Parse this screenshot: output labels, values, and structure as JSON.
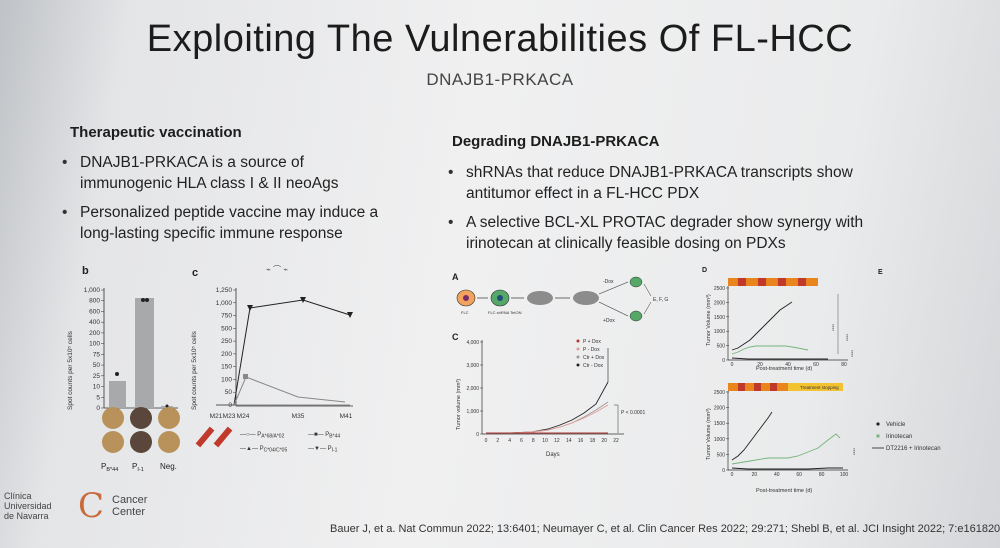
{
  "slide": {
    "title": "Exploiting The Vulnerabilities Of FL-HCC",
    "subtitle": "DNAJB1-PRKACA"
  },
  "left": {
    "heading": "Therapeutic vaccination",
    "bullets": [
      {
        "lines": [
          "DNAJB1-PRKACA is a source of",
          "immunogenic HLA class I & II neoAgs"
        ]
      },
      {
        "lines": [
          "Personalized peptide vaccine may induce a",
          "long-lasting specific immune response"
        ]
      }
    ]
  },
  "right": {
    "heading": "Degrading DNAJB1-PRKACA",
    "bullets": [
      {
        "lines": [
          "shRNAs that reduce DNAJB1-PRKACA transcripts show",
          "antitumor effect in a FL-HCC PDX"
        ]
      },
      {
        "lines": [
          "A selective BCL-XL PROTAC degrader show synergy with",
          "irinotecan at clinically feasible dosing on PDXs"
        ]
      }
    ]
  },
  "figures": {
    "b": {
      "label": "b",
      "ylabel": "Spot counts per 5x10⁵ cells",
      "yticks": [
        "0",
        "5",
        "10",
        "25",
        "50",
        "75",
        "100",
        "200",
        "400",
        "600",
        "800",
        "1,000"
      ],
      "bars": [
        {
          "name": "PB*44",
          "value": 55
        },
        {
          "name": "PI-1",
          "value": 850
        },
        {
          "name": "Neg.",
          "value": 3
        }
      ],
      "xlabels": [
        "P",
        "P",
        "Neg."
      ],
      "xsub": [
        "B*44",
        "I-1",
        ""
      ],
      "colors": {
        "bar": "#a8a9ab",
        "well_light": "#b8925a",
        "well_dark": "#5a463a"
      }
    },
    "c": {
      "label": "c",
      "ylabel": "Spot counts per 5x10⁵ cells",
      "yticks": [
        "0",
        "50",
        "100",
        "150",
        "200",
        "250",
        "500",
        "750",
        "1,000",
        "1,250"
      ],
      "xticks": [
        "M21",
        "M23",
        "M24",
        "M35",
        "M41"
      ],
      "series": [
        {
          "name": "PA*68/A*02",
          "values": [
            0,
            0,
            0,
            0,
            0
          ]
        },
        {
          "name": "PC*04/C*05",
          "values": [
            0,
            0,
            0,
            0,
            0
          ]
        },
        {
          "name": "PB*44",
          "values": [
            0,
            0,
            65,
            25,
            5
          ]
        },
        {
          "name": "PI-1",
          "values": [
            0,
            0,
            850,
            1010,
            760
          ]
        }
      ],
      "legend": [
        "—○— P",
        "A*68/A*02",
        "—▲— P",
        "C*04/C*05",
        "—■— P",
        "B*44",
        "—▼— P",
        "I-1"
      ],
      "colors": {
        "syringe": "#c0392b"
      }
    },
    "A": {
      "label": "A",
      "labels": [
        "FLC",
        "FLC shRNA TetON",
        "-Dox",
        "+Dox",
        "E, F, G"
      ]
    },
    "C": {
      "label": "C",
      "ylabel": "Tumor volume (mm³)",
      "xlabel": "Days",
      "yticks": [
        "0",
        "1,000",
        "2,000",
        "3,000",
        "4,000"
      ],
      "xticks": [
        "0",
        "2",
        "4",
        "6",
        "8",
        "10",
        "12",
        "14",
        "16",
        "18",
        "20",
        "22"
      ],
      "legend": [
        "P + Dox",
        "P - Dox",
        "Ctr + Dox",
        "Ctr - Dox"
      ],
      "pvalue": "P < 0.0001",
      "colors": {
        "p_plus": "#b0342f",
        "p_minus": "#e19a9a",
        "ctr_plus": "#9a9a9a",
        "ctr_minus": "#222222"
      }
    },
    "D": {
      "label": "D",
      "ylabel": "Tumor Volume (mm³)",
      "xlabel": "Post-treatment time (d)",
      "top_yticks": [
        "0",
        "500",
        "1000",
        "1500",
        "2000",
        "2500"
      ],
      "top_xticks": [
        "0",
        "20",
        "40",
        "60",
        "80"
      ],
      "bottom_yticks": [
        "0",
        "500",
        "1000",
        "1500",
        "2000",
        "2500"
      ],
      "bottom_xticks": [
        "0",
        "20",
        "40",
        "60",
        "80",
        "100"
      ],
      "bottom_banner": "Treatment stopping",
      "sig": "****",
      "legend": [
        "Vehicle",
        "Irinotecan",
        "DT2216 + Irinotecan"
      ],
      "colors": {
        "vehicle": "#222222",
        "irinotecan": "#76b47a",
        "combo": "#222222",
        "banner_a": "#e8851f",
        "banner_b": "#c0392b",
        "banner_y": "#f2c230"
      }
    },
    "E": {
      "label": "E"
    }
  },
  "footer": {
    "logo1": [
      "Clínica",
      "Universidad",
      "de Navarra"
    ],
    "logo2": [
      "Cancer",
      "Center"
    ],
    "reference": "Bauer J, et a. Nat Commun 2022; 13:6401; Neumayer C, et al. Clin Cancer Res 2022; 29:271; Shebl B, et al. JCI Insight 2022; 7:e161820"
  }
}
